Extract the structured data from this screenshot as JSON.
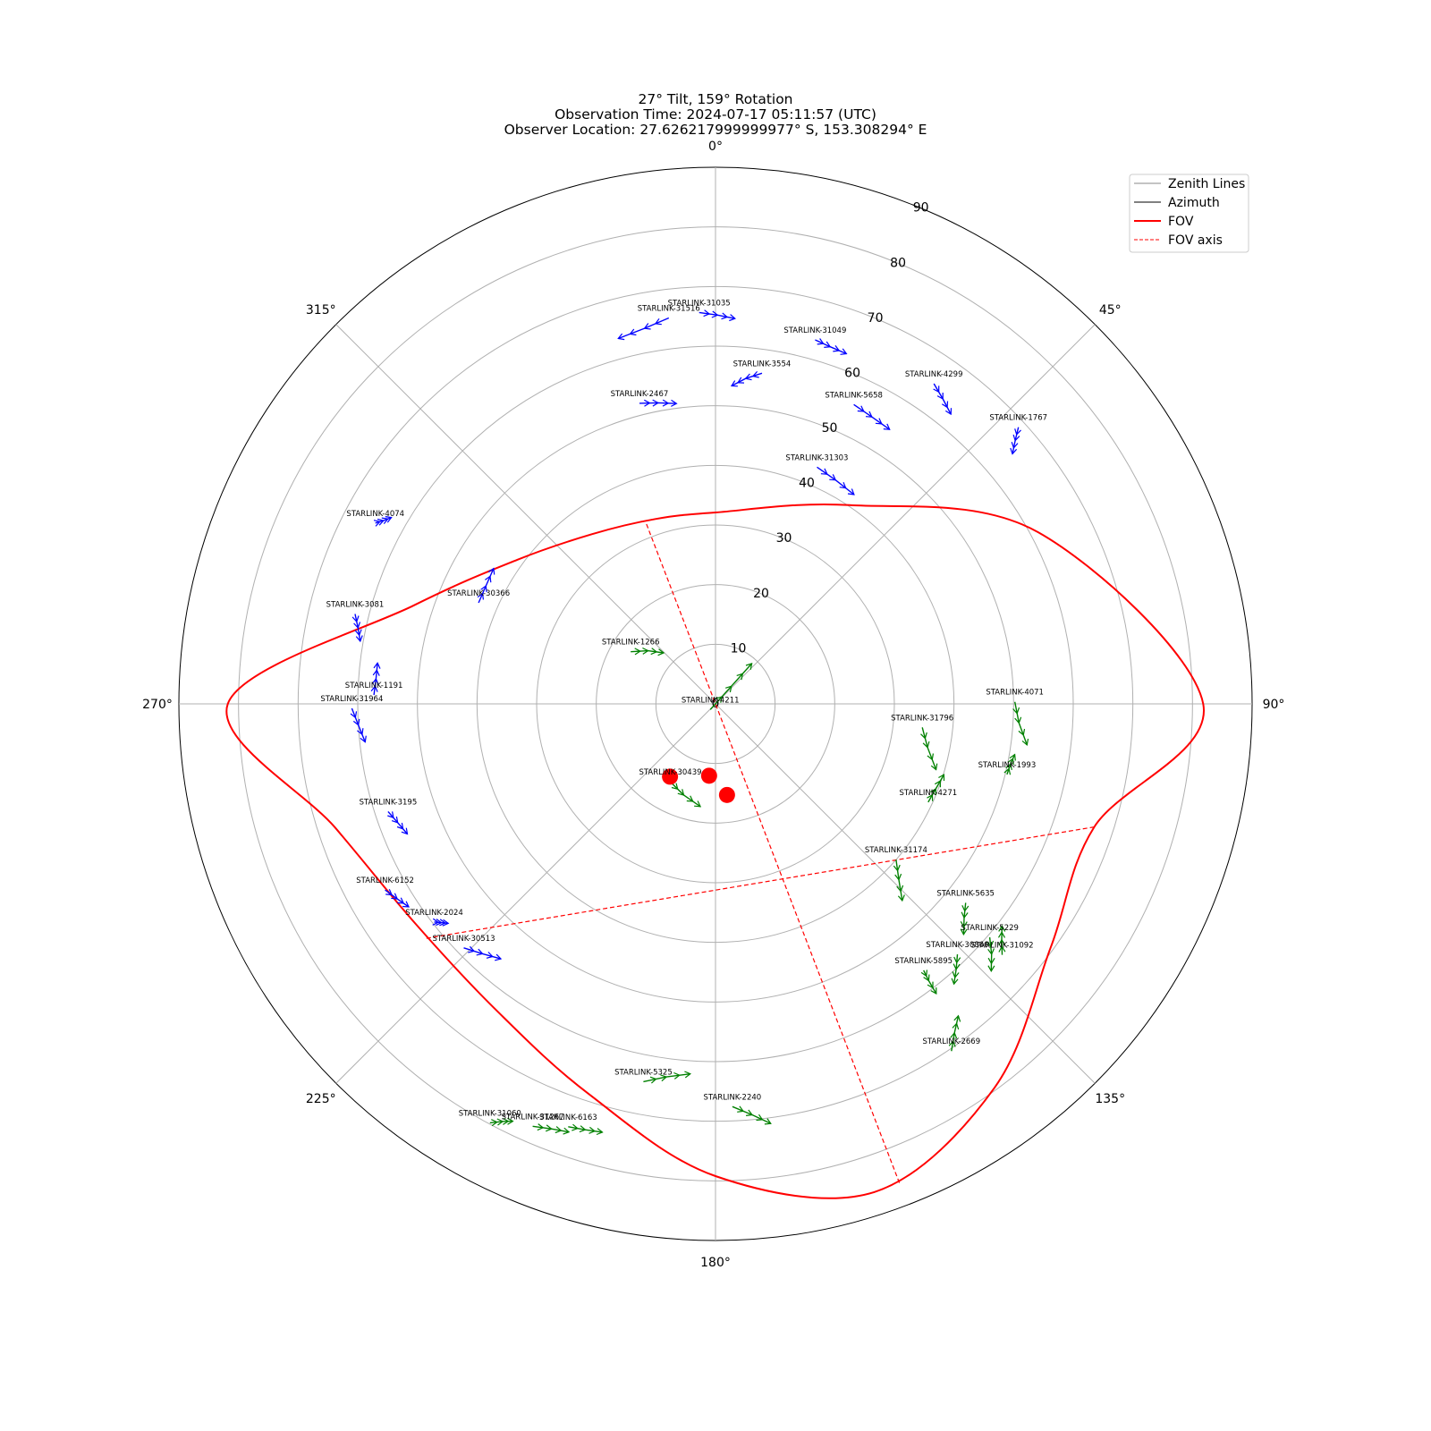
{
  "chart_data": {
    "type": "polar",
    "title": [
      "27° Tilt, 159° Rotation",
      "Observation Time: 2024-07-17 05:11:57 (UTC)",
      "Observer Location: 27.626217999999977° S, 153.308294° E"
    ],
    "theta_direction": "clockwise",
    "theta_zero": "north",
    "theta_ticks": [
      0,
      45,
      90,
      135,
      180,
      225,
      270,
      315
    ],
    "theta_tick_labels": [
      "0°",
      "45°",
      "90°",
      "135°",
      "180°",
      "225°",
      "270°",
      "315°"
    ],
    "r_range": [
      0,
      90
    ],
    "r_ticks": [
      0,
      10,
      20,
      30,
      40,
      50,
      60,
      70,
      80,
      90
    ],
    "r_tick_labels": [
      "0",
      "10",
      "20",
      "30",
      "40",
      "50",
      "60",
      "70",
      "80",
      "90"
    ],
    "grid": true,
    "legend_position": "top-right",
    "legend": [
      {
        "label": "Zenith Lines",
        "style": "solid",
        "color": "#888888"
      },
      {
        "label": "Azimuth",
        "style": "solid",
        "color": "#000000"
      },
      {
        "label": "FOV",
        "style": "solid-thick",
        "color": "#ff0000"
      },
      {
        "label": "FOV axis",
        "style": "dashed",
        "color": "#ff0000"
      }
    ],
    "fov": {
      "tilt": 27,
      "rotation": 159,
      "color": "#ff0000",
      "boundary": [
        {
          "az": 0,
          "zen": 32.1
        },
        {
          "az": 34,
          "zen": 40.2
        },
        {
          "az": 62,
          "zen": 61.3
        },
        {
          "az": 90,
          "zen": 81.8
        },
        {
          "az": 108,
          "zen": 66.8
        },
        {
          "az": 126,
          "zen": 69.5
        },
        {
          "az": 144,
          "zen": 79.6
        },
        {
          "az": 162,
          "zen": 86.1
        },
        {
          "az": 180,
          "zen": 79.2
        },
        {
          "az": 198,
          "zen": 68.8
        },
        {
          "az": 216,
          "zen": 63.1
        },
        {
          "az": 234,
          "zen": 62.4
        },
        {
          "az": 252,
          "zen": 67.1
        },
        {
          "az": 270,
          "zen": 81.8
        },
        {
          "az": 288,
          "zen": 53.3
        },
        {
          "az": 306,
          "zen": 41.1
        },
        {
          "az": 324,
          "zen": 35.2
        },
        {
          "az": 342,
          "zen": 32.6
        }
      ],
      "axes": [
        {
          "from": {
            "az": 339,
            "zen": 32.3
          },
          "to": {
            "az": 159,
            "zen": 86.4
          }
        },
        {
          "from": {
            "az": 108,
            "zen": 66.8
          },
          "to": {
            "az": 231,
            "zen": 62.5
          }
        }
      ]
    },
    "series": [
      {
        "name": "STARLINK-31035",
        "color": "#0000ff",
        "points": [
          {
            "az": -2.4,
            "zen": 65.7
          },
          {
            "az": 0.3,
            "zen": 65.2
          },
          {
            "az": 2.9,
            "zen": 64.7
          }
        ]
      },
      {
        "name": "STARLINK-31516",
        "color": "#0000ff",
        "points": [
          {
            "az": -6.9,
            "zen": 65.2
          },
          {
            "az": -10.7,
            "zen": 64.1
          },
          {
            "az": -14.9,
            "zen": 63.4
          }
        ]
      },
      {
        "name": "STARLINK-31049",
        "color": "#0000ff",
        "points": [
          {
            "az": 15.3,
            "zen": 63.3
          },
          {
            "az": 17.8,
            "zen": 62.9
          },
          {
            "az": 20.5,
            "zen": 62.7
          }
        ]
      },
      {
        "name": "STARLINK-3554",
        "color": "#0000ff",
        "points": [
          {
            "az": 8.0,
            "zen": 56.0
          },
          {
            "az": 5.3,
            "zen": 54.8
          },
          {
            "az": 2.9,
            "zen": 53.4
          }
        ]
      },
      {
        "name": "STARLINK-2467",
        "color": "#0000ff",
        "points": [
          {
            "az": -14.2,
            "zen": 52.0
          },
          {
            "az": -10.8,
            "zen": 51.4
          },
          {
            "az": -7.4,
            "zen": 50.8
          }
        ]
      },
      {
        "name": "STARLINK-5658",
        "color": "#0000ff",
        "points": [
          {
            "az": 24.8,
            "zen": 55.3
          },
          {
            "az": 28.6,
            "zen": 54.8
          },
          {
            "az": 32.4,
            "zen": 54.5
          }
        ]
      },
      {
        "name": "STARLINK-4299",
        "color": "#0000ff",
        "points": [
          {
            "az": 34.3,
            "zen": 65.0
          },
          {
            "az": 36.7,
            "zen": 63.8
          },
          {
            "az": 39.1,
            "zen": 62.6
          }
        ]
      },
      {
        "name": "STARLINK-31303",
        "color": "#0000ff",
        "points": [
          {
            "az": 23.2,
            "zen": 43.2
          },
          {
            "az": 28.2,
            "zen": 42.6
          },
          {
            "az": 33.5,
            "zen": 42.1
          }
        ]
      },
      {
        "name": "STARLINK-1767",
        "color": "#0000ff",
        "points": [
          {
            "az": 47.6,
            "zen": 68.8
          },
          {
            "az": 48.7,
            "zen": 66.9
          },
          {
            "az": 49.9,
            "zen": 65.1
          }
        ]
      },
      {
        "name": "STARLINK-4074",
        "color": "#0000ff",
        "points": [
          {
            "az": 298.0,
            "zen": 64.6
          },
          {
            "az": 298.9,
            "zen": 63.6
          },
          {
            "az": 299.9,
            "zen": 62.7
          }
        ]
      },
      {
        "name": "STARLINK-3081",
        "color": "#0000ff",
        "points": [
          {
            "az": 284.0,
            "zen": 62.3
          },
          {
            "az": 282.0,
            "zen": 61.3
          },
          {
            "az": 280.0,
            "zen": 60.5
          }
        ]
      },
      {
        "name": "STARLINK-30366",
        "color": "#0000ff",
        "points": [
          {
            "az": 293.1,
            "zen": 43.2
          },
          {
            "az": 297.2,
            "zen": 43.3
          },
          {
            "az": 301.4,
            "zen": 43.6
          }
        ]
      },
      {
        "name": "STARLINK-1191",
        "color": "#0000ff",
        "points": [
          {
            "az": 271.5,
            "zen": 57.3
          },
          {
            "az": 274.2,
            "zen": 57.1
          },
          {
            "az": 276.9,
            "zen": 57.1
          }
        ]
      },
      {
        "name": "STARLINK-31964",
        "color": "#0000ff",
        "points": [
          {
            "az": 269.3,
            "zen": 61.0
          },
          {
            "az": 266.6,
            "zen": 60.0
          },
          {
            "az": 263.8,
            "zen": 59.1
          }
        ]
      },
      {
        "name": "STARLINK-3195",
        "color": "#0000ff",
        "points": [
          {
            "az": 251.8,
            "zen": 57.8
          },
          {
            "az": 249.5,
            "zen": 56.9
          },
          {
            "az": 247.1,
            "zen": 56.1
          }
        ]
      },
      {
        "name": "STARLINK-6152",
        "color": "#0000ff",
        "points": [
          {
            "az": 240.6,
            "zen": 63.6
          },
          {
            "az": 238.5,
            "zen": 62.6
          },
          {
            "az": 236.5,
            "zen": 61.7
          }
        ]
      },
      {
        "name": "STARLINK-2024",
        "color": "#0000ff",
        "points": [
          {
            "az": 232.2,
            "zen": 59.7
          },
          {
            "az": 231.4,
            "zen": 58.8
          },
          {
            "az": 230.6,
            "zen": 58.0
          }
        ]
      },
      {
        "name": "STARLINK-30513",
        "color": "#0000ff",
        "points": [
          {
            "az": 225.9,
            "zen": 58.8
          },
          {
            "az": 223.0,
            "zen": 57.3
          },
          {
            "az": 220.1,
            "zen": 55.9
          }
        ]
      },
      {
        "name": "STARLINK-4211",
        "color": "#008000",
        "points": [
          {
            "az": 222.0,
            "zen": 1.3
          },
          {
            "az": 42.0,
            "zen": 4.0
          },
          {
            "az": 42.0,
            "zen": 9.1
          }
        ]
      },
      {
        "name": "STARLINK-1266",
        "color": "#008000",
        "points": [
          {
            "az": 301.6,
            "zen": 16.7
          },
          {
            "az": 308.2,
            "zen": 14.4
          },
          {
            "az": 314.5,
            "zen": 12.2
          }
        ]
      },
      {
        "name": "STARLINK-30439",
        "color": "#008000",
        "points": [
          {
            "az": 210.1,
            "zen": 15.1
          },
          {
            "az": 199.2,
            "zen": 16.2
          },
          {
            "az": 188.4,
            "zen": 17.4
          }
        ]
      },
      {
        "name": "STARLINK-31796",
        "color": "#008000",
        "points": [
          {
            "az": 96.5,
            "zen": 34.9
          },
          {
            "az": 101.6,
            "zen": 36.3
          },
          {
            "az": 106.6,
            "zen": 38.6
          }
        ]
      },
      {
        "name": "STARLINK-4071",
        "color": "#008000",
        "points": [
          {
            "az": 89.6,
            "zen": 50.2
          },
          {
            "az": 93.6,
            "zen": 51.0
          },
          {
            "az": 97.5,
            "zen": 52.7
          }
        ]
      },
      {
        "name": "STARLINK-1993",
        "color": "#008000",
        "points": [
          {
            "az": 103.6,
            "zen": 50.3
          },
          {
            "az": 101.5,
            "zen": 50.5
          },
          {
            "az": 99.6,
            "zen": 50.9
          }
        ]
      },
      {
        "name": "STARLINK-4271",
        "color": "#008000",
        "points": [
          {
            "az": 114.8,
            "zen": 39.3
          },
          {
            "az": 111.1,
            "zen": 39.6
          },
          {
            "az": 107.2,
            "zen": 40.1
          }
        ]
      },
      {
        "name": "STARLINK-31174",
        "color": "#008000",
        "points": [
          {
            "az": 130.8,
            "zen": 40.0
          },
          {
            "az": 133.8,
            "zen": 42.6
          },
          {
            "az": 136.5,
            "zen": 45.5
          }
        ]
      },
      {
        "name": "STARLINK-5635",
        "color": "#008000",
        "points": [
          {
            "az": 128.5,
            "zen": 53.6
          },
          {
            "az": 130.7,
            "zen": 55.0
          },
          {
            "az": 132.9,
            "zen": 56.8
          }
        ]
      },
      {
        "name": "STARLINK-31092",
        "color": "#008000",
        "points": [
          {
            "az": 131.2,
            "zen": 63.9
          },
          {
            "az": 129.5,
            "zen": 62.2
          },
          {
            "az": 127.8,
            "zen": 60.8
          }
        ]
      },
      {
        "name": "STARLINK-5229",
        "color": "#008000",
        "points": [
          {
            "az": 130.4,
            "zen": 60.4
          },
          {
            "az": 132.2,
            "zen": 62.5
          },
          {
            "az": 134.1,
            "zen": 64.4
          }
        ]
      },
      {
        "name": "STARLINK-30866",
        "color": "#008000",
        "points": [
          {
            "az": 136.0,
            "zen": 58.4
          },
          {
            "az": 137.8,
            "zen": 60.1
          },
          {
            "az": 139.6,
            "zen": 61.7
          }
        ]
      },
      {
        "name": "STARLINK-5895",
        "color": "#008000",
        "points": [
          {
            "az": 142.0,
            "zen": 56.7
          },
          {
            "az": 142.4,
            "zen": 58.6
          },
          {
            "az": 142.7,
            "zen": 61.1
          }
        ]
      },
      {
        "name": "STARLINK-2669",
        "color": "#008000",
        "points": [
          {
            "az": 145.8,
            "zen": 70.4
          },
          {
            "az": 144.0,
            "zen": 68.2
          },
          {
            "az": 142.1,
            "zen": 66.3
          }
        ]
      },
      {
        "name": "STARLINK-5325",
        "color": "#008000",
        "points": [
          {
            "az": 190.8,
            "zen": 64.5
          },
          {
            "az": 187.5,
            "zen": 63.1
          },
          {
            "az": 183.9,
            "zen": 62.2
          }
        ]
      },
      {
        "name": "STARLINK-2240",
        "color": "#008000",
        "points": [
          {
            "az": 177.6,
            "zen": 67.6
          },
          {
            "az": 174.9,
            "zen": 69.2
          },
          {
            "az": 172.5,
            "zen": 71.0
          }
        ]
      },
      {
        "name": "STARLINK-6163",
        "color": "#008000",
        "points": [
          {
            "az": 199.2,
            "zen": 75.1
          },
          {
            "az": 197.0,
            "zen": 74.7
          },
          {
            "az": 194.8,
            "zen": 74.3
          }
        ]
      },
      {
        "name": "STARLINK-31267",
        "color": "#008000",
        "points": [
          {
            "az": 203.4,
            "zen": 77.2
          },
          {
            "az": 201.1,
            "zen": 76.4
          },
          {
            "az": 198.9,
            "zen": 75.9
          }
        ]
      },
      {
        "name": "STARLINK-31060",
        "color": "#008000",
        "points": [
          {
            "az": 208.3,
            "zen": 79.8
          },
          {
            "az": 207.0,
            "zen": 78.6
          },
          {
            "az": 205.9,
            "zen": 77.8
          }
        ]
      }
    ],
    "markers": [
      {
        "az": 212.0,
        "zen": 14.4,
        "color": "#ff0000"
      },
      {
        "az": 185.1,
        "zen": 12.1,
        "color": "#ff0000"
      },
      {
        "az": 172.8,
        "zen": 15.4,
        "color": "#ff0000"
      }
    ]
  }
}
